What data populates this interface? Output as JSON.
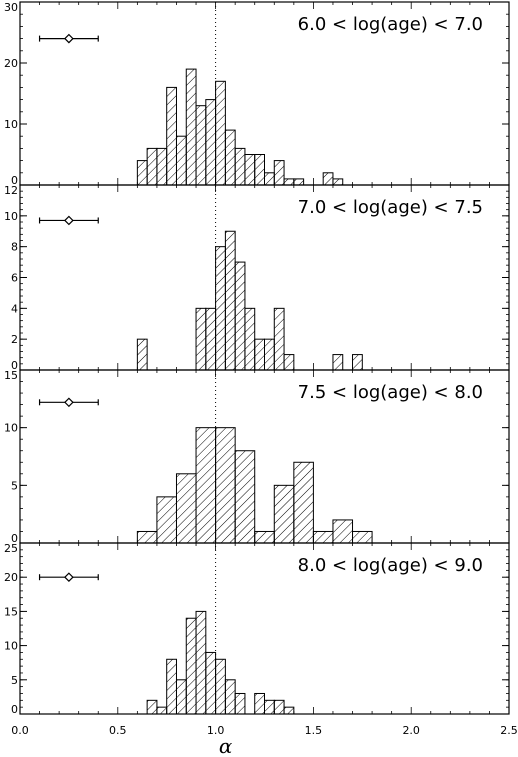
{
  "chart_data": {
    "type": "bar",
    "xlabel": "α",
    "xlim": [
      0.0,
      2.5
    ],
    "xticks": [
      "0.0",
      "0.5",
      "1.0",
      "1.5",
      "2.0",
      "2.5"
    ],
    "reference_line_x": 1.0,
    "bin_edges": [
      0.0,
      0.1,
      0.2,
      0.3,
      0.4,
      0.5,
      0.6,
      0.7,
      0.8,
      0.9,
      1.0,
      1.1,
      1.2,
      1.3,
      1.4,
      1.5,
      1.6,
      1.7,
      1.8,
      1.9,
      2.0,
      2.1,
      2.2,
      2.3,
      2.4,
      2.5
    ],
    "panels": [
      {
        "title": "6.0 < log(age) < 7.0",
        "ylim": [
          0,
          30
        ],
        "yticks": [
          "0",
          "10",
          "20",
          "30"
        ],
        "yticks_values": [
          0,
          10,
          20,
          30
        ],
        "bin_width": 0.05,
        "bin_start": 0.6,
        "values": [
          4,
          6,
          6,
          16,
          8,
          19,
          13,
          14,
          17,
          9,
          6,
          5,
          5,
          2,
          4,
          1,
          1,
          0,
          0,
          2,
          1
        ],
        "error_bar": {
          "x": 0.25,
          "x_low": 0.1,
          "x_high": 0.4,
          "y": 24
        }
      },
      {
        "title": "7.0 < log(age) < 7.5",
        "ylim": [
          0,
          12
        ],
        "yticks": [
          "0",
          "2",
          "4",
          "6",
          "8",
          "10",
          "12"
        ],
        "yticks_values": [
          0,
          2,
          4,
          6,
          8,
          10,
          12
        ],
        "bin_width": 0.05,
        "bin_start": 0.6,
        "values": [
          2,
          0,
          0,
          0,
          0,
          0,
          4,
          4,
          8,
          9,
          7,
          4,
          2,
          2,
          4,
          1,
          0,
          0,
          0,
          0,
          1,
          0,
          1,
          0,
          0
        ],
        "error_bar": {
          "x": 0.25,
          "x_low": 0.1,
          "x_high": 0.4,
          "y": 9.7
        }
      },
      {
        "title": "7.5 < log(age) < 8.0",
        "ylim": [
          0,
          15
        ],
        "yticks": [
          "0",
          "5",
          "10",
          "15"
        ],
        "yticks_values": [
          0,
          5,
          10,
          15
        ],
        "bin_width": 0.1,
        "bin_start": 0.6,
        "values": [
          1,
          4,
          6,
          10,
          10,
          8,
          1,
          5,
          7,
          1,
          2,
          1,
          0
        ],
        "error_bar": {
          "x": 0.25,
          "x_low": 0.1,
          "x_high": 0.4,
          "y": 12.2
        }
      },
      {
        "title": "8.0 < log(age) < 9.0",
        "ylim": [
          0,
          25
        ],
        "yticks": [
          "0",
          "5",
          "10",
          "15",
          "20",
          "25"
        ],
        "yticks_values": [
          0,
          5,
          10,
          15,
          20,
          25
        ],
        "bin_width": 0.05,
        "bin_start": 0.6,
        "values": [
          0,
          2,
          1,
          8,
          5,
          14,
          15,
          9,
          8,
          5,
          3,
          0,
          3,
          2,
          2,
          1,
          0
        ],
        "error_bar": {
          "x": 0.25,
          "x_low": 0.1,
          "x_high": 0.4,
          "y": 20
        }
      }
    ]
  }
}
